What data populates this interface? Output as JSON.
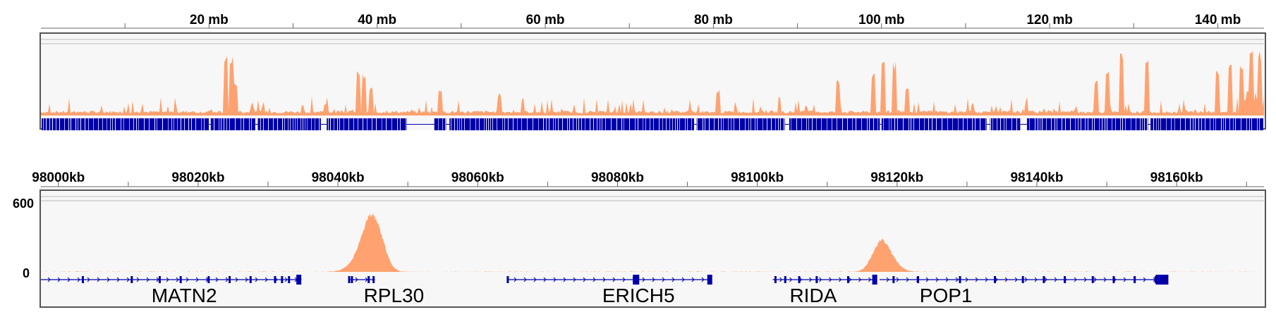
{
  "colors": {
    "coverage": "#FFA26F",
    "genes": "#0000AA",
    "panel_bg": "#F7F7F7",
    "frame": "#555555",
    "ticks": "#666666"
  },
  "chart_data": [
    {
      "type": "area",
      "view": "chromosome-overview",
      "axis_unit": "mb",
      "xlim": [
        0,
        145.5
      ],
      "ticks": [
        20,
        40,
        60,
        80,
        100,
        120,
        140
      ],
      "tick_labels": [
        "20 mb",
        "40 mb",
        "60 mb",
        "80 mb",
        "100 mb",
        "120 mb",
        "140 mb"
      ],
      "minor_ticks": [
        10,
        30,
        50,
        70,
        90,
        110,
        130
      ],
      "coverage_peaks": [
        {
          "x": 22.0,
          "h": 0.95
        },
        {
          "x": 22.6,
          "h": 0.92
        },
        {
          "x": 23.1,
          "h": 0.55
        },
        {
          "x": 37.8,
          "h": 0.7
        },
        {
          "x": 38.5,
          "h": 0.65
        },
        {
          "x": 39.2,
          "h": 0.45
        },
        {
          "x": 47.5,
          "h": 0.45
        },
        {
          "x": 54.5,
          "h": 0.35
        },
        {
          "x": 80.5,
          "h": 0.42
        },
        {
          "x": 94.8,
          "h": 0.55
        },
        {
          "x": 99.0,
          "h": 0.65
        },
        {
          "x": 100.2,
          "h": 0.95
        },
        {
          "x": 101.5,
          "h": 0.85
        },
        {
          "x": 103.0,
          "h": 0.5
        },
        {
          "x": 125.5,
          "h": 0.55
        },
        {
          "x": 126.8,
          "h": 0.72
        },
        {
          "x": 128.5,
          "h": 1.0
        },
        {
          "x": 131.5,
          "h": 1.0
        },
        {
          "x": 140.0,
          "h": 0.72
        },
        {
          "x": 141.5,
          "h": 0.85
        },
        {
          "x": 142.8,
          "h": 0.8
        },
        {
          "x": 144.0,
          "h": 1.0
        },
        {
          "x": 145.0,
          "h": 1.0
        }
      ],
      "gene_gaps": [
        [
          20.0,
          20.2
        ],
        [
          25.5,
          25.8
        ],
        [
          33.3,
          34.0
        ],
        [
          43.5,
          46.8
        ],
        [
          48.2,
          48.6
        ],
        [
          77.7,
          78.0
        ],
        [
          88.5,
          89.0
        ],
        [
          99.8,
          100.0
        ],
        [
          112.5,
          112.9
        ],
        [
          116.5,
          117.3
        ],
        [
          131.7,
          132.0
        ]
      ]
    },
    {
      "type": "area",
      "view": "zoomed-region",
      "axis_unit": "kb",
      "xlim": [
        97997.5,
        98172.5
      ],
      "ticks": [
        98000,
        98020,
        98040,
        98060,
        98080,
        98100,
        98120,
        98140,
        98160
      ],
      "tick_labels": [
        "98000kb",
        "98020kb",
        "98040kb",
        "98060kb",
        "98080kb",
        "98100kb",
        "98120kb",
        "98140kb",
        "98160kb"
      ],
      "minor_ticks": [
        98010,
        98030,
        98050,
        98070,
        98090,
        98110,
        98130,
        98150,
        98170
      ],
      "y_axis_labels": [
        "600",
        "0"
      ],
      "ylim": [
        0,
        600
      ],
      "peaks": [
        {
          "center": 98044.8,
          "height": 460,
          "width": 1.2
        },
        {
          "center": 98043.6,
          "height": 180,
          "width": 1.6
        },
        {
          "center": 98046.3,
          "height": 150,
          "width": 1.0
        },
        {
          "center": 98117.6,
          "height": 275,
          "width": 1.2
        },
        {
          "center": 98118.8,
          "height": 110,
          "width": 1.4
        }
      ],
      "genes": [
        {
          "name": "MATN2",
          "start": 97997.5,
          "end": 98034.8,
          "exons": [
            98003.5,
            98010.5,
            98014.5,
            98017.5,
            98021.5,
            98024.5,
            98027.5,
            98031.0,
            98032.0,
            98033.0,
            98034.4
          ]
        },
        {
          "name": "RPL30",
          "start": 98041.5,
          "end": 98045.3,
          "exons": [
            98041.6,
            98042.0,
            98044.4,
            98045.1
          ]
        },
        {
          "name": "ERICH5",
          "start": 98064.2,
          "end": 98093.3,
          "exons": [
            98064.3,
            98082.5,
            98093.2
          ]
        },
        {
          "name": "RIDA",
          "start": 98102.2,
          "end": 98117.0,
          "exons": [
            98102.6,
            98104.0,
            98106.0,
            98108.5,
            98113.0,
            98116.8
          ]
        },
        {
          "name": "POP1",
          "start": 98117.5,
          "end": 98158.5,
          "exons": [
            98119.5,
            98123.0,
            98129.0,
            98134.0,
            98138.0,
            98141.0,
            98144.0,
            98148.0,
            98151.0,
            98154.0,
            98157.0,
            98158.3
          ]
        }
      ],
      "gene_labels": [
        {
          "name": "MATN2",
          "x": 98018.0
        },
        {
          "name": "RPL30",
          "x": 98048.0
        },
        {
          "name": "ERICH5",
          "x": 98083.0
        },
        {
          "name": "RIDA",
          "x": 98108.0
        },
        {
          "name": "POP1",
          "x": 98127.0
        }
      ]
    }
  ]
}
